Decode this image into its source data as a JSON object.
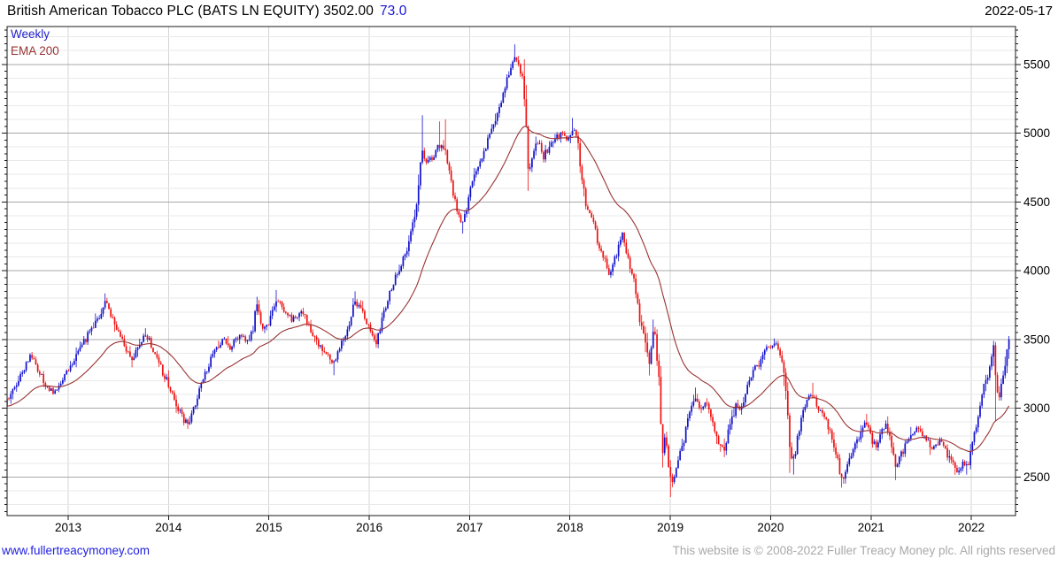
{
  "header": {
    "title": "British American Tobacco PLC (BATS LN EQUITY) 3502.00",
    "change": "73.0",
    "date": "2022-05-17"
  },
  "legend": {
    "frequency": "Weekly",
    "overlay": "EMA 200"
  },
  "footer": {
    "link": "www.fullertreacymoney.com",
    "copyright": "This website is © 2008-2022 Fuller Treacy Money plc. All rights reserved"
  },
  "chart_data": {
    "type": "candlestick",
    "title": "British American Tobacco PLC (BATS LN EQUITY)",
    "frequency": "Weekly",
    "overlay": "EMA 200",
    "as_of": "2022-05-17",
    "last_close": 3502.0,
    "change": 73.0,
    "x_axis": {
      "years": [
        2013,
        2014,
        2015,
        2016,
        2017,
        2018,
        2019,
        2020,
        2021,
        2022
      ],
      "range": [
        2012.391,
        2022.44
      ]
    },
    "y_axis": {
      "ticks": [
        2500,
        3000,
        3500,
        4000,
        4500,
        5000,
        5500
      ],
      "minor_step": 100,
      "range": [
        2220,
        5775
      ],
      "side": "right"
    },
    "series": [
      {
        "name": "Weekly",
        "type": "candlestick",
        "color_up": "#1111cc",
        "color_down": "#ee1111",
        "anchors": [
          [
            2012.39,
            3050
          ],
          [
            2012.46,
            3130
          ],
          [
            2012.54,
            3260
          ],
          [
            2012.62,
            3390
          ],
          [
            2012.7,
            3280
          ],
          [
            2012.78,
            3160
          ],
          [
            2012.86,
            3120
          ],
          [
            2012.95,
            3230
          ],
          [
            2013.04,
            3330
          ],
          [
            2013.13,
            3450
          ],
          [
            2013.22,
            3560
          ],
          [
            2013.31,
            3670
          ],
          [
            2013.37,
            3790
          ],
          [
            2013.43,
            3680
          ],
          [
            2013.5,
            3550
          ],
          [
            2013.57,
            3430
          ],
          [
            2013.64,
            3360
          ],
          [
            2013.71,
            3480
          ],
          [
            2013.78,
            3530
          ],
          [
            2013.85,
            3430
          ],
          [
            2013.92,
            3300
          ],
          [
            2014.0,
            3170
          ],
          [
            2014.07,
            3050
          ],
          [
            2014.14,
            2930
          ],
          [
            2014.19,
            2880
          ],
          [
            2014.28,
            3070
          ],
          [
            2014.37,
            3270
          ],
          [
            2014.46,
            3410
          ],
          [
            2014.54,
            3500
          ],
          [
            2014.62,
            3440
          ],
          [
            2014.7,
            3530
          ],
          [
            2014.78,
            3490
          ],
          [
            2014.84,
            3560
          ],
          [
            2014.88,
            3760
          ],
          [
            2014.93,
            3590
          ],
          [
            2015.0,
            3630
          ],
          [
            2015.08,
            3800
          ],
          [
            2015.15,
            3710
          ],
          [
            2015.23,
            3640
          ],
          [
            2015.33,
            3700
          ],
          [
            2015.42,
            3570
          ],
          [
            2015.5,
            3460
          ],
          [
            2015.58,
            3390
          ],
          [
            2015.64,
            3300
          ],
          [
            2015.71,
            3460
          ],
          [
            2015.79,
            3580
          ],
          [
            2015.86,
            3790
          ],
          [
            2015.93,
            3690
          ],
          [
            2016.0,
            3570
          ],
          [
            2016.06,
            3460
          ],
          [
            2016.13,
            3650
          ],
          [
            2016.21,
            3850
          ],
          [
            2016.29,
            4000
          ],
          [
            2016.37,
            4150
          ],
          [
            2016.44,
            4360
          ],
          [
            2016.48,
            4550
          ],
          [
            2016.52,
            4870
          ],
          [
            2016.58,
            4780
          ],
          [
            2016.64,
            4840
          ],
          [
            2016.7,
            4920
          ],
          [
            2016.76,
            4840
          ],
          [
            2016.82,
            4620
          ],
          [
            2016.88,
            4420
          ],
          [
            2016.93,
            4320
          ],
          [
            2016.98,
            4480
          ],
          [
            2017.04,
            4680
          ],
          [
            2017.12,
            4820
          ],
          [
            2017.2,
            4990
          ],
          [
            2017.28,
            5160
          ],
          [
            2017.36,
            5340
          ],
          [
            2017.44,
            5560
          ],
          [
            2017.5,
            5460
          ],
          [
            2017.55,
            5320
          ],
          [
            2017.58,
            4700
          ],
          [
            2017.63,
            4850
          ],
          [
            2017.68,
            4950
          ],
          [
            2017.73,
            4820
          ],
          [
            2017.79,
            4900
          ],
          [
            2017.86,
            4960
          ],
          [
            2017.92,
            5010
          ],
          [
            2017.97,
            4920
          ],
          [
            2018.03,
            5040
          ],
          [
            2018.08,
            4950
          ],
          [
            2018.12,
            4680
          ],
          [
            2018.16,
            4480
          ],
          [
            2018.22,
            4400
          ],
          [
            2018.28,
            4180
          ],
          [
            2018.34,
            4090
          ],
          [
            2018.4,
            3960
          ],
          [
            2018.46,
            4120
          ],
          [
            2018.52,
            4260
          ],
          [
            2018.58,
            4080
          ],
          [
            2018.64,
            3900
          ],
          [
            2018.7,
            3640
          ],
          [
            2018.75,
            3470
          ],
          [
            2018.79,
            3300
          ],
          [
            2018.83,
            3600
          ],
          [
            2018.86,
            3440
          ],
          [
            2018.88,
            3290
          ],
          [
            2018.9,
            3060
          ],
          [
            2018.92,
            2680
          ],
          [
            2018.95,
            2780
          ],
          [
            2018.98,
            2620
          ],
          [
            2019.01,
            2450
          ],
          [
            2019.06,
            2560
          ],
          [
            2019.11,
            2700
          ],
          [
            2019.16,
            2860
          ],
          [
            2019.21,
            3000
          ],
          [
            2019.26,
            3100
          ],
          [
            2019.31,
            2970
          ],
          [
            2019.36,
            3040
          ],
          [
            2019.42,
            2890
          ],
          [
            2019.48,
            2760
          ],
          [
            2019.53,
            2700
          ],
          [
            2019.58,
            2830
          ],
          [
            2019.63,
            2960
          ],
          [
            2019.66,
            3040
          ],
          [
            2019.7,
            2950
          ],
          [
            2019.74,
            3080
          ],
          [
            2019.79,
            3200
          ],
          [
            2019.84,
            3330
          ],
          [
            2019.88,
            3280
          ],
          [
            2019.93,
            3390
          ],
          [
            2019.98,
            3450
          ],
          [
            2020.04,
            3480
          ],
          [
            2020.08,
            3400
          ],
          [
            2020.12,
            3330
          ],
          [
            2020.16,
            3020
          ],
          [
            2020.19,
            2690
          ],
          [
            2020.23,
            2620
          ],
          [
            2020.27,
            2820
          ],
          [
            2020.32,
            2960
          ],
          [
            2020.37,
            3060
          ],
          [
            2020.42,
            3110
          ],
          [
            2020.47,
            3010
          ],
          [
            2020.52,
            2950
          ],
          [
            2020.58,
            2860
          ],
          [
            2020.63,
            2740
          ],
          [
            2020.68,
            2580
          ],
          [
            2020.71,
            2490
          ],
          [
            2020.76,
            2560
          ],
          [
            2020.81,
            2660
          ],
          [
            2020.86,
            2760
          ],
          [
            2020.91,
            2850
          ],
          [
            2020.95,
            2900
          ],
          [
            2021.0,
            2790
          ],
          [
            2021.05,
            2710
          ],
          [
            2021.1,
            2810
          ],
          [
            2021.15,
            2880
          ],
          [
            2021.2,
            2740
          ],
          [
            2021.25,
            2560
          ],
          [
            2021.3,
            2660
          ],
          [
            2021.36,
            2760
          ],
          [
            2021.42,
            2830
          ],
          [
            2021.47,
            2870
          ],
          [
            2021.52,
            2800
          ],
          [
            2021.58,
            2740
          ],
          [
            2021.63,
            2700
          ],
          [
            2021.68,
            2760
          ],
          [
            2021.73,
            2700
          ],
          [
            2021.78,
            2640
          ],
          [
            2021.83,
            2570
          ],
          [
            2021.87,
            2540
          ],
          [
            2021.91,
            2610
          ],
          [
            2021.95,
            2560
          ],
          [
            2022.0,
            2680
          ],
          [
            2022.04,
            2830
          ],
          [
            2022.08,
            3020
          ],
          [
            2022.12,
            3140
          ],
          [
            2022.16,
            3230
          ],
          [
            2022.19,
            3320
          ],
          [
            2022.22,
            3410
          ],
          [
            2022.25,
            3130
          ],
          [
            2022.28,
            3080
          ],
          [
            2022.31,
            3210
          ],
          [
            2022.33,
            3300
          ],
          [
            2022.35,
            3260
          ],
          [
            2022.36,
            3400
          ],
          [
            2022.375,
            3502
          ]
        ],
        "spikes": [
          [
            2013.37,
            3835
          ],
          [
            2014.19,
            2850
          ],
          [
            2014.88,
            3810
          ],
          [
            2015.08,
            3860
          ],
          [
            2015.64,
            3240
          ],
          [
            2015.86,
            3850
          ],
          [
            2016.52,
            5130
          ],
          [
            2016.7,
            5085
          ],
          [
            2016.76,
            5100
          ],
          [
            2016.93,
            4270
          ],
          [
            2017.44,
            5645
          ],
          [
            2017.58,
            4580
          ],
          [
            2018.03,
            5110
          ],
          [
            2018.79,
            3238
          ],
          [
            2018.83,
            3645
          ],
          [
            2018.92,
            2570
          ],
          [
            2019.01,
            2355
          ],
          [
            2019.26,
            3150
          ],
          [
            2019.53,
            2645
          ],
          [
            2020.04,
            3507
          ],
          [
            2020.19,
            2530
          ],
          [
            2020.23,
            2518
          ],
          [
            2020.42,
            3185
          ],
          [
            2020.71,
            2423
          ],
          [
            2020.95,
            2960
          ],
          [
            2021.25,
            2478
          ],
          [
            2021.87,
            2516
          ],
          [
            2021.95,
            2518
          ],
          [
            2022.22,
            3446
          ],
          [
            2022.25,
            2912
          ],
          [
            2022.375,
            3525
          ]
        ]
      },
      {
        "name": "EMA 200",
        "type": "line",
        "color": "#993333",
        "period_days": 200,
        "derived": "ema_of_weekly_close",
        "end_value": 3060
      }
    ],
    "grid": {
      "major_color": "#a9a9a9",
      "minor_color": "#e9e9e9",
      "year_line_color": "#d4d4d4",
      "border_color": "#1a1a1a"
    }
  }
}
